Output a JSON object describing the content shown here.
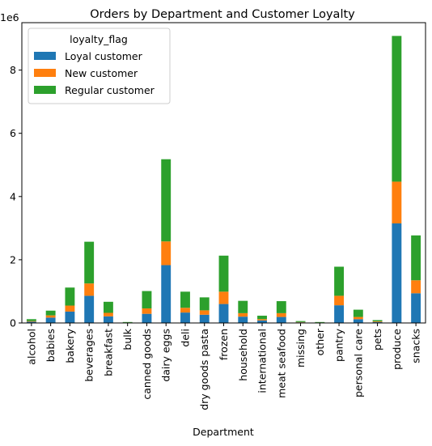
{
  "chart_data": {
    "type": "bar",
    "stacked": true,
    "title": "Orders by Department and Customer Loyalty",
    "xlabel": "Department",
    "ylabel": "",
    "y_multiplier_label": "1e6",
    "ylim": [
      0,
      9.5
    ],
    "yticks": [
      0,
      2,
      4,
      6,
      8
    ],
    "y_tick_labels": [
      "0",
      "2",
      "4",
      "6",
      "8"
    ],
    "grid": false,
    "legend_position": "top-left",
    "legend_title": "loyalty_flag",
    "categories": [
      "alcohol",
      "babies",
      "bakery",
      "beverages",
      "breakfast",
      "bulk",
      "canned goods",
      "dairy eggs",
      "deli",
      "dry goods pasta",
      "frozen",
      "household",
      "international",
      "meat seafood",
      "missing",
      "other",
      "pantry",
      "personal care",
      "pets",
      "produce",
      "snacks"
    ],
    "series": [
      {
        "name": "Loyal customer",
        "color": "#1f77b4",
        "values": [
          0.04,
          0.17,
          0.36,
          0.86,
          0.21,
          0.01,
          0.29,
          1.83,
          0.33,
          0.26,
          0.6,
          0.2,
          0.08,
          0.19,
          0.02,
          0.01,
          0.56,
          0.12,
          0.03,
          3.15,
          0.94
        ]
      },
      {
        "name": "New customer",
        "color": "#ff7f0e",
        "values": [
          0.02,
          0.07,
          0.19,
          0.39,
          0.11,
          0.005,
          0.17,
          0.75,
          0.15,
          0.14,
          0.39,
          0.11,
          0.04,
          0.12,
          0.01,
          0.005,
          0.3,
          0.07,
          0.02,
          1.32,
          0.41
        ]
      },
      {
        "name": "Regular customer",
        "color": "#2ca02c",
        "values": [
          0.06,
          0.15,
          0.57,
          1.32,
          0.35,
          0.015,
          0.55,
          2.6,
          0.51,
          0.41,
          1.14,
          0.39,
          0.11,
          0.38,
          0.03,
          0.015,
          0.92,
          0.23,
          0.04,
          4.61,
          1.42
        ]
      }
    ]
  }
}
